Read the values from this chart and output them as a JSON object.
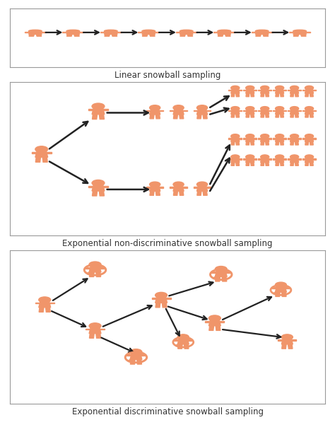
{
  "blue": "#5BB8D4",
  "orange": "#F0956A",
  "dark": "#222222",
  "bg": "#FFFFFF",
  "border": "#999999",
  "label1": "Linear snowball sampling",
  "label2": "Exponential non-discriminative snowball sampling",
  "label3": "Exponential discriminative snowball sampling",
  "fig_width": 4.74,
  "fig_height": 6.11,
  "dpi": 100,
  "panel1_colors": [
    "blue",
    "blue",
    "orange",
    "blue",
    "blue",
    "orange",
    "blue",
    "orange"
  ],
  "panel1_n": 8,
  "panel2_mid_colors": [
    "blue",
    "blue",
    "blue"
  ],
  "panel2_row1": [
    "blue",
    "orange",
    "blue",
    "orange",
    "blue",
    "orange"
  ],
  "panel2_row2": [
    "orange",
    "blue",
    "orange",
    "blue",
    "orange",
    "blue"
  ],
  "panel2_row3": [
    "blue",
    "orange",
    "blue",
    "orange",
    "blue",
    "orange"
  ],
  "panel2_row4": [
    "blue",
    "orange",
    "blue",
    "orange",
    "blue",
    "blue"
  ]
}
